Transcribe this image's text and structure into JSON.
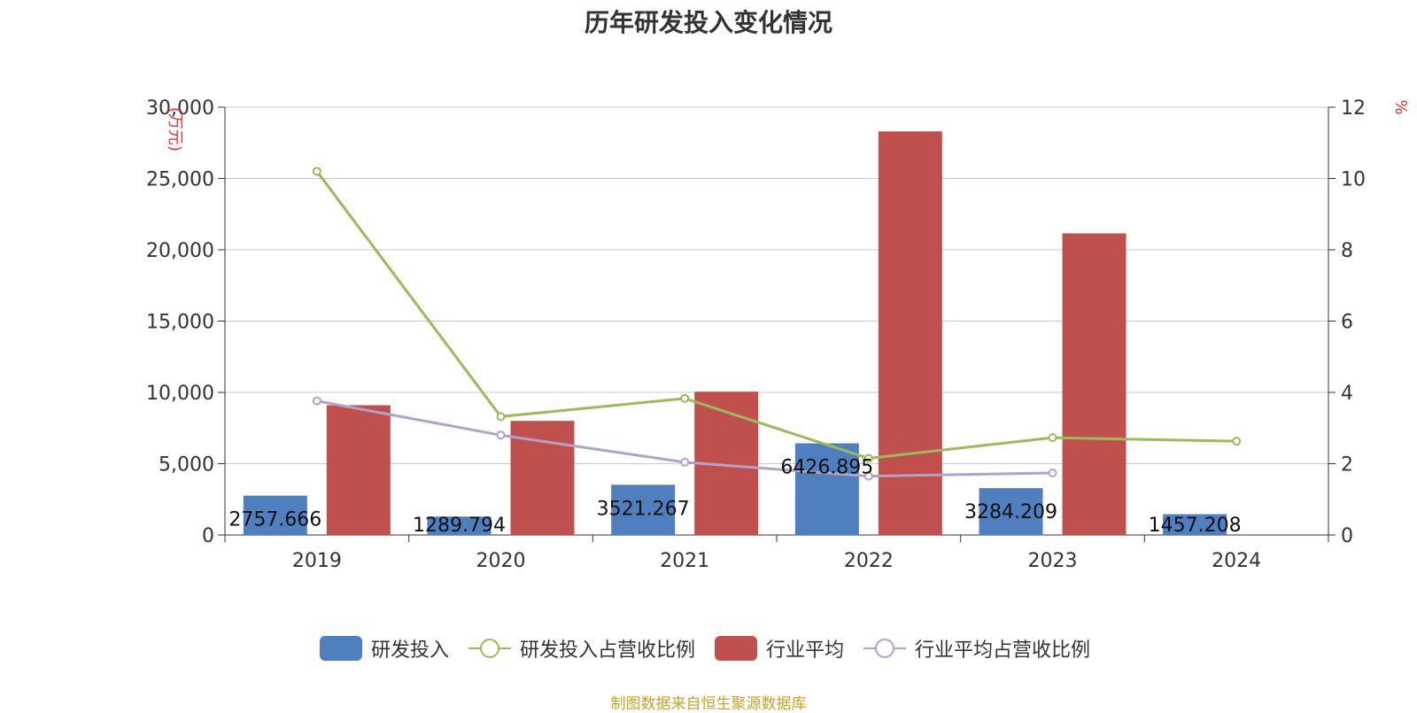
{
  "title": "历年研发投入变化情况",
  "source": "制图数据来自恒生聚源数据库",
  "colors": {
    "rd": "#4f7fbf",
    "rd_ratio": "#9bbb59",
    "ind": "#c0504d",
    "ind_ratio": "#b3a2c7"
  },
  "chart_data": {
    "type": "bar",
    "categories": [
      "2019",
      "2020",
      "2021",
      "2022",
      "2023",
      "2024"
    ],
    "y_left": {
      "label": "(万元)",
      "ticks": [
        "0",
        "5,000",
        "10,000",
        "15,000",
        "20,000",
        "25,000",
        "30,000"
      ],
      "range": [
        0,
        30000
      ]
    },
    "y_right": {
      "label": "%",
      "ticks": [
        "0",
        "2",
        "4",
        "6",
        "8",
        "10",
        "12"
      ],
      "range": [
        0,
        12
      ]
    },
    "series": [
      {
        "name": "研发投入",
        "type": "bar",
        "axis": "left",
        "values": [
          2757.666,
          1289.794,
          3521.267,
          6426.895,
          3284.209,
          1457.208
        ],
        "labels": [
          "2757.666",
          "1289.794",
          "3521.267",
          "6426.895",
          "3284.209",
          "1457.208"
        ]
      },
      {
        "name": "研发投入占营收比例",
        "type": "line",
        "axis": "right",
        "values": [
          10.2,
          3.32,
          3.83,
          2.15,
          2.73,
          2.63
        ]
      },
      {
        "name": "行业平均",
        "type": "bar",
        "axis": "left",
        "values": [
          9100,
          8000,
          10050,
          28300,
          21150,
          null
        ]
      },
      {
        "name": "行业平均占营收比例",
        "type": "line",
        "axis": "right",
        "values": [
          3.76,
          2.8,
          2.04,
          1.65,
          1.74,
          null
        ]
      }
    ],
    "grid": true,
    "legend_position": "bottom"
  }
}
